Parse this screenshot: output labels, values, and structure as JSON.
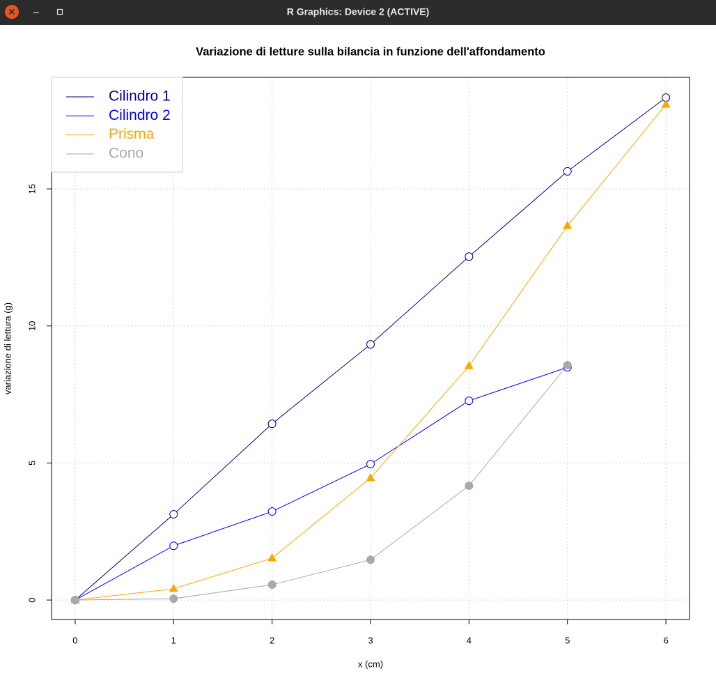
{
  "window": {
    "title": "R Graphics: Device 2 (ACTIVE)"
  },
  "chart_data": {
    "type": "line",
    "title": "Variazione di letture sulla bilancia in funzione dell'affondamento",
    "x_label": "x (cm)",
    "y_label": "variazione di lettura (g)",
    "xlim": [
      -0.24,
      6.24
    ],
    "ylim": [
      -0.71,
      19.07
    ],
    "xticks": [
      0,
      1,
      2,
      3,
      4,
      5,
      6
    ],
    "yticks": [
      0,
      5,
      10,
      15
    ],
    "grid": true,
    "legend": "top-left",
    "series": [
      {
        "name": "Cilindro 1",
        "color": "#00008b",
        "marker": "circle-open",
        "x": [
          0,
          1,
          2,
          3,
          4,
          5,
          6
        ],
        "values": [
          0,
          3.13,
          6.43,
          9.33,
          12.53,
          15.64,
          18.33
        ]
      },
      {
        "name": "Cilindro 2",
        "color": "#0000ff",
        "marker": "circle-open",
        "x": [
          0,
          1,
          2,
          3,
          4,
          5
        ],
        "values": [
          0,
          1.98,
          3.23,
          4.96,
          7.27,
          8.49
        ]
      },
      {
        "name": "Prisma",
        "color": "#ffa500",
        "marker": "triangle",
        "x": [
          0,
          1,
          2,
          3,
          4,
          5,
          6
        ],
        "values": [
          0,
          0.41,
          1.53,
          4.45,
          8.54,
          13.65,
          18.08
        ]
      },
      {
        "name": "Cono",
        "color": "#a9a9a9",
        "marker": "circle-filled",
        "x": [
          0,
          1,
          2,
          3,
          4,
          5
        ],
        "values": [
          0,
          0.05,
          0.56,
          1.47,
          4.17,
          8.57
        ]
      }
    ]
  }
}
